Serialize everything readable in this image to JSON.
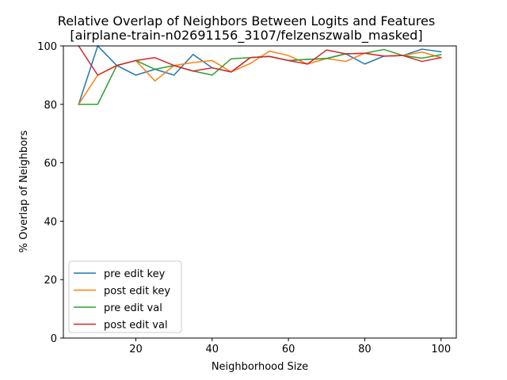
{
  "chart_data": {
    "type": "line",
    "title": "Relative Overlap of Neighbors Between Logits and Features",
    "subtitle": "[airplane-train-n02691156_3107/felzenszwalb_masked]",
    "xlabel": "Neighborhood Size",
    "ylabel": "% Overlap of Neighbors",
    "xlim": [
      1,
      104
    ],
    "ylim": [
      0,
      100
    ],
    "xticks": [
      20,
      40,
      60,
      80,
      100
    ],
    "yticks": [
      0,
      20,
      40,
      60,
      80,
      100
    ],
    "grid": false,
    "legend_position": "lower-left",
    "x": [
      5,
      10,
      15,
      20,
      25,
      30,
      35,
      40,
      45,
      50,
      55,
      60,
      65,
      70,
      75,
      80,
      85,
      90,
      95,
      100
    ],
    "series": [
      {
        "name": "pre edit key",
        "color": "#1f77b4",
        "values": [
          80,
          100,
          93.3,
          90,
          92,
          90,
          97.1,
          92.5,
          91.1,
          96,
          96.4,
          95,
          95.4,
          95.7,
          97.3,
          93.8,
          96.5,
          96.7,
          98.9,
          98
        ]
      },
      {
        "name": "post edit key",
        "color": "#ff7f0e",
        "values": [
          80,
          90,
          93.3,
          95,
          88,
          93.3,
          94.3,
          95,
          91.1,
          94,
          98.2,
          96.7,
          93.8,
          95.7,
          94.7,
          97.5,
          96.5,
          96.7,
          97.9,
          96
        ]
      },
      {
        "name": "pre edit val",
        "color": "#2ca02c",
        "values": [
          80,
          80,
          93.3,
          95,
          92,
          93.3,
          91.4,
          90,
          95.6,
          96,
          96.4,
          95,
          95.4,
          95.7,
          97.3,
          97.5,
          98.8,
          96.7,
          95.8,
          97
        ]
      },
      {
        "name": "post edit val",
        "color": "#d62728",
        "values": [
          100,
          90,
          93.3,
          95,
          96,
          93.3,
          91.4,
          92.5,
          91.1,
          96,
          96.4,
          95,
          93.8,
          98.6,
          97.3,
          97.5,
          96.5,
          96.7,
          94.7,
          96
        ]
      }
    ]
  }
}
